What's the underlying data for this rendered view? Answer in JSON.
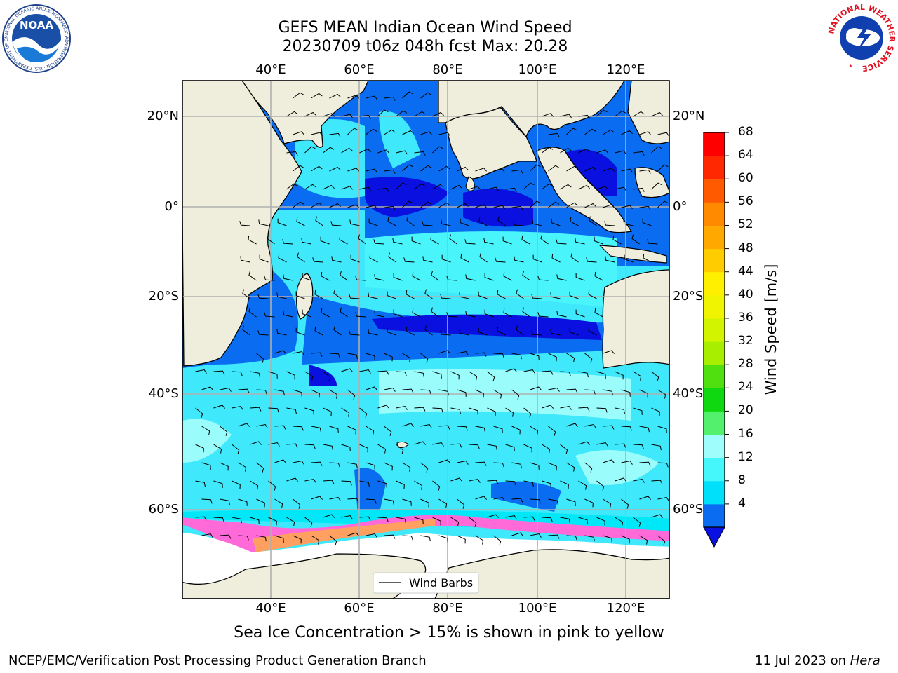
{
  "header": {
    "title_line1": "GEFS MEAN Indian Ocean Wind Speed",
    "title_line2": "20230709 t06z 048h fcst   Max: 20.28"
  },
  "logos": {
    "left_text": "NOAA",
    "left_ring_text": "NATIONAL OCEANIC AND ATMOSPHERIC ADMINISTRATION · U.S. DEPARTMENT OF COMMERCE",
    "right_ring_text": "NATIONAL WEATHER SERVICE"
  },
  "map": {
    "lon_labels": [
      "40°E",
      "60°E",
      "80°E",
      "100°E",
      "120°E"
    ],
    "lat_labels": [
      "20°N",
      "0°",
      "20°S",
      "40°S",
      "60°S"
    ],
    "legend_label": "Wind Barbs",
    "colors": {
      "land": "#efeedc",
      "ocean_4": "#0a6cf0",
      "ocean_8": "#00e8f8",
      "ocean_12": "#49f4fa",
      "ocean_16": "#9bfcfc",
      "calm": "#0a10e0",
      "ice_pink": "#ff6ad8",
      "ice_orange": "#ffa060"
    }
  },
  "colorbar": {
    "label": "Wind Speed [m/s]",
    "ticks": [
      "68",
      "64",
      "60",
      "56",
      "52",
      "48",
      "44",
      "40",
      "36",
      "32",
      "28",
      "24",
      "20",
      "16",
      "12",
      "8",
      "4"
    ],
    "colors": [
      "#0a6cf0",
      "#00e0fa",
      "#45f6fa",
      "#9ffefc",
      "#52f06c",
      "#10d810",
      "#50e010",
      "#a8ee00",
      "#d2f400",
      "#f0f400",
      "#fff000",
      "#ffcc00",
      "#ffa800",
      "#ff8a00",
      "#ff5a00",
      "#ff2800",
      "#ff0000"
    ],
    "arrow_color": "#0a10e0"
  },
  "caption": "Sea Ice Concentration > 15% is shown in pink to yellow",
  "footer": {
    "left": "NCEP/EMC/Verification Post Processing Product Generation Branch",
    "right_date": "11 Jul 2023 on ",
    "right_host": "Hera"
  }
}
